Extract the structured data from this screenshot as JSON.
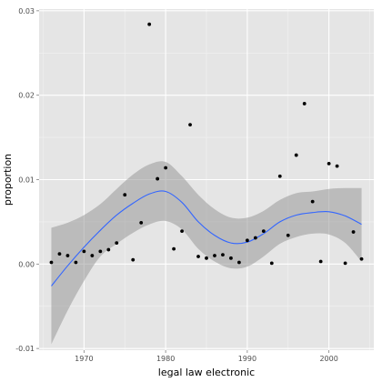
{
  "chart_data": {
    "type": "scatter",
    "title": "",
    "xlabel": "legal law electronic",
    "ylabel": "proportion",
    "xlim": [
      1964.5,
      2005.5
    ],
    "ylim": [
      -0.0102,
      0.0302
    ],
    "x_ticks": [
      1970,
      1980,
      1990,
      2000
    ],
    "x_tick_labels": [
      "1970",
      "1980",
      "1990",
      "2000"
    ],
    "y_ticks": [
      -0.01,
      0.0,
      0.01,
      0.02,
      0.03
    ],
    "y_tick_labels": [
      "-0.01",
      "0.00",
      "0.01",
      "0.02",
      "0.03"
    ],
    "grid": true,
    "colors": {
      "panel_background": "#e5e5e5",
      "grid_major": "#ffffff",
      "grid_minor": "#f2f2f2",
      "points": "#000000",
      "smooth_line": "#3366ff",
      "confidence_band": "#999999",
      "tick_text": "#4d4d4d"
    },
    "series": [
      {
        "kind": "points",
        "x": [
          1966,
          1967,
          1968,
          1969,
          1970,
          1971,
          1972,
          1973,
          1974,
          1975,
          1976,
          1977,
          1978,
          1979,
          1980,
          1981,
          1982,
          1983,
          1984,
          1985,
          1986,
          1987,
          1988,
          1989,
          1990,
          1991,
          1992,
          1993,
          1994,
          1995,
          1996,
          1997,
          1998,
          1999,
          2000,
          2001,
          2002,
          2003,
          2004
        ],
        "y": [
          0.0002,
          0.0012,
          0.001,
          0.0002,
          0.0015,
          0.001,
          0.0015,
          0.0017,
          0.0025,
          0.0082,
          0.0005,
          0.0049,
          0.0284,
          0.0101,
          0.0114,
          0.0018,
          0.0039,
          0.0165,
          0.0009,
          0.0007,
          0.001,
          0.0011,
          0.0007,
          0.0002,
          0.0028,
          0.0031,
          0.0039,
          0.0001,
          0.0104,
          0.0034,
          0.0129,
          0.019,
          0.0074,
          0.0003,
          0.0119,
          0.0116,
          0.0001,
          0.0038,
          0.0006
        ]
      },
      {
        "kind": "smooth",
        "x": [
          1966,
          1968,
          1970,
          1972,
          1974,
          1976,
          1978,
          1980,
          1982,
          1984,
          1986,
          1988,
          1990,
          1992,
          1994,
          1996,
          1998,
          2000,
          2002,
          2004
        ],
        "y": [
          -0.0026,
          -0.0002,
          0.002,
          0.004,
          0.0058,
          0.0072,
          0.0083,
          0.0086,
          0.0073,
          0.005,
          0.0034,
          0.0025,
          0.0026,
          0.0036,
          0.005,
          0.0058,
          0.0061,
          0.0062,
          0.0057,
          0.0047
        ],
        "lower": [
          -0.0095,
          -0.0055,
          -0.002,
          0.0009,
          0.0024,
          0.0037,
          0.0047,
          0.0051,
          0.0041,
          0.0018,
          0.0003,
          -0.0005,
          -0.0003,
          0.0009,
          0.0024,
          0.0032,
          0.0036,
          0.0035,
          0.0025,
          0.0003
        ],
        "upper": [
          0.0043,
          0.0049,
          0.0058,
          0.0071,
          0.0089,
          0.0106,
          0.0118,
          0.0121,
          0.0104,
          0.0082,
          0.0065,
          0.0055,
          0.0055,
          0.0063,
          0.0076,
          0.0084,
          0.0086,
          0.0089,
          0.009,
          0.009
        ]
      }
    ]
  }
}
